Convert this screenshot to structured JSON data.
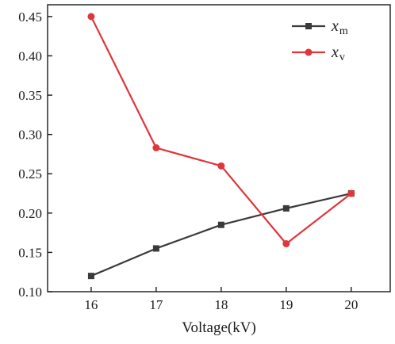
{
  "chart_data": {
    "type": "line",
    "title": "",
    "xlabel": "Voltage(kV)",
    "ylabel": "",
    "x": [
      16,
      17,
      18,
      19,
      20
    ],
    "xlim": [
      15.33,
      20.6
    ],
    "ylim": [
      0.1,
      0.465
    ],
    "xticks": [
      16,
      17,
      18,
      19,
      20
    ],
    "yticks": [
      0.1,
      0.15,
      0.2,
      0.25,
      0.3,
      0.35,
      0.4,
      0.45
    ],
    "ytick_labels": [
      "0.10",
      "0.15",
      "0.20",
      "0.25",
      "0.30",
      "0.35",
      "0.40",
      "0.45"
    ],
    "grid": false,
    "legend_position": "top-right",
    "series": [
      {
        "name": "x",
        "subscript": "m",
        "color": "#3a3a3a",
        "marker": "square",
        "values": [
          0.12,
          0.155,
          0.185,
          0.206,
          0.225
        ]
      },
      {
        "name": "x",
        "subscript": "v",
        "color": "#e0353a",
        "marker": "circle",
        "values": [
          0.45,
          0.283,
          0.26,
          0.161,
          0.225
        ]
      }
    ]
  }
}
